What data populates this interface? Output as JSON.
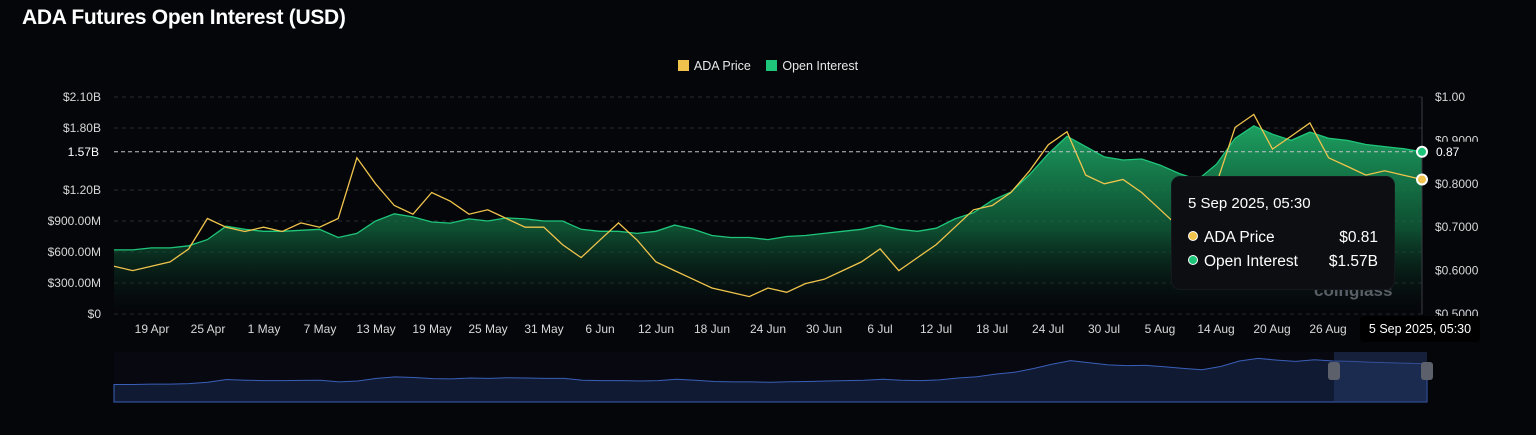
{
  "title": "ADA Futures Open Interest (USD)",
  "legend": [
    {
      "label": "ADA Price",
      "color": "#f0c44c"
    },
    {
      "label": "Open Interest",
      "color": "#1ec67a"
    }
  ],
  "crosshair": {
    "left_label": "1.57B",
    "right_label": "0.87"
  },
  "tooltip": {
    "date": "5 Sep 2025, 05:30",
    "rows": [
      {
        "label": "ADA Price",
        "value": "$0.81",
        "color": "#f0c44c"
      },
      {
        "label": "Open Interest",
        "value": "$1.57B",
        "color": "#1ec67a"
      }
    ]
  },
  "x_tooltip": "5 Sep 2025, 05:30",
  "watermark": "coinglass",
  "chart_data": {
    "type": "area",
    "title": "ADA Futures Open Interest (USD)",
    "x_start": "13 Apr",
    "x_end": "5 Sep",
    "x_tick_labels": [
      "19 Apr",
      "25 Apr",
      "1 May",
      "7 May",
      "13 May",
      "19 May",
      "25 May",
      "31 May",
      "6 Jun",
      "12 Jun",
      "18 Jun",
      "24 Jun",
      "30 Jun",
      "6 Jul",
      "12 Jul",
      "18 Jul",
      "24 Jul",
      "30 Jul",
      "5 Aug",
      "14 Aug",
      "20 Aug",
      "26 Aug"
    ],
    "y_left": {
      "min": 0,
      "max": 2100000000,
      "tick_labels": [
        "$0",
        "$300.00M",
        "$600.00M",
        "$900.00M",
        "$1.20B",
        "$1.80B",
        "$2.10B"
      ],
      "tick_values": [
        0,
        300000000,
        600000000,
        900000000,
        1200000000,
        1800000000,
        2100000000
      ]
    },
    "y_right": {
      "min": 0.5,
      "max": 1.0,
      "tick_labels": [
        "$0.5000",
        "$0.6000",
        "$0.7000",
        "$0.8000",
        "$0.9000",
        "$1.00"
      ],
      "tick_values": [
        0.5,
        0.6,
        0.7,
        0.8,
        0.9,
        1.0
      ]
    },
    "grid": true,
    "legend_position": "top-center",
    "series": [
      {
        "name": "Open Interest",
        "axis": "left",
        "type": "area",
        "color": "#1ec67a",
        "values": [
          620,
          620,
          640,
          640,
          660,
          720,
          850,
          820,
          800,
          800,
          810,
          820,
          740,
          780,
          900,
          970,
          940,
          890,
          880,
          920,
          900,
          930,
          920,
          900,
          900,
          820,
          800,
          800,
          780,
          800,
          860,
          820,
          760,
          740,
          740,
          720,
          750,
          760,
          780,
          800,
          820,
          860,
          820,
          800,
          830,
          920,
          980,
          1100,
          1180,
          1350,
          1550,
          1720,
          1620,
          1520,
          1490,
          1500,
          1440,
          1360,
          1300,
          1450,
          1700,
          1820,
          1740,
          1680,
          1760,
          1700,
          1680,
          1640,
          1620,
          1600,
          1570
        ]
      },
      {
        "name": "ADA Price",
        "axis": "right",
        "type": "line",
        "color": "#f0c44c",
        "values": [
          0.61,
          0.6,
          0.61,
          0.62,
          0.65,
          0.72,
          0.7,
          0.69,
          0.7,
          0.69,
          0.71,
          0.7,
          0.72,
          0.86,
          0.8,
          0.75,
          0.73,
          0.78,
          0.76,
          0.73,
          0.74,
          0.72,
          0.7,
          0.7,
          0.66,
          0.63,
          0.67,
          0.71,
          0.67,
          0.62,
          0.6,
          0.58,
          0.56,
          0.55,
          0.54,
          0.56,
          0.55,
          0.57,
          0.58,
          0.6,
          0.62,
          0.65,
          0.6,
          0.63,
          0.66,
          0.7,
          0.74,
          0.75,
          0.78,
          0.83,
          0.89,
          0.92,
          0.82,
          0.8,
          0.81,
          0.78,
          0.74,
          0.7,
          0.72,
          0.8,
          0.93,
          0.96,
          0.88,
          0.91,
          0.94,
          0.86,
          0.84,
          0.82,
          0.83,
          0.82,
          0.81
        ]
      }
    ]
  }
}
